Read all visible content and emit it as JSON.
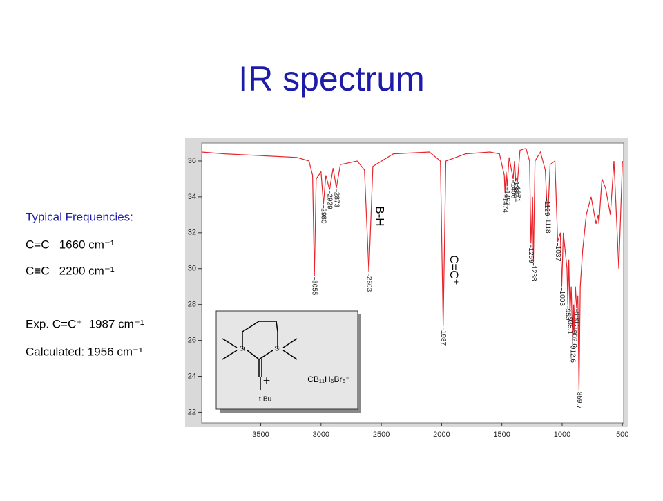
{
  "title": "IR spectrum",
  "notes": {
    "heading": "Typical Frequencies:",
    "lines": [
      "C=C   1660 cm⁻¹",
      "C≡C   2200 cm⁻¹",
      "Exp. C=C⁺  1987 cm⁻¹",
      "Calculated: 1956 cm⁻¹"
    ]
  },
  "inset": {
    "atoms": [
      "Si",
      "Si"
    ],
    "charge": "+",
    "substituent": "t-Bu",
    "anion": "CB₁₁H₆Br₆⁻"
  },
  "chart_data": {
    "type": "line",
    "x": [
      3990,
      3800,
      3500,
      3200,
      3100,
      3070,
      3055,
      3040,
      3000,
      2980,
      2960,
      2929,
      2900,
      2873,
      2840,
      2700,
      2640,
      2603,
      2570,
      2400,
      2100,
      2010,
      1987,
      1965,
      1800,
      1600,
      1520,
      1480,
      1474,
      1465,
      1457,
      1440,
      1406,
      1395,
      1387,
      1371,
      1350,
      1300,
      1270,
      1259,
      1245,
      1238,
      1225,
      1180,
      1140,
      1129,
      1118,
      1100,
      1060,
      1037,
      1015,
      1003,
      990,
      960,
      953,
      945,
      935,
      925,
      912,
      905,
      902,
      890,
      880,
      870,
      860,
      850,
      830,
      800,
      760,
      719,
      700,
      695,
      670,
      640,
      600,
      570,
      530,
      500
    ],
    "series": [
      {
        "name": "spectrum",
        "color": "#e8232a",
        "values": [
          36.5,
          36.4,
          36.3,
          36.2,
          36.0,
          35.2,
          29.6,
          35.0,
          35.4,
          33.6,
          35.2,
          34.4,
          35.6,
          34.5,
          35.8,
          36.0,
          35.5,
          29.8,
          35.7,
          36.4,
          36.5,
          36.0,
          26.8,
          36.0,
          36.4,
          36.5,
          36.4,
          35.2,
          34.2,
          35.4,
          34.6,
          36.2,
          35.0,
          36.0,
          35.1,
          34.8,
          36.6,
          36.7,
          36.0,
          31.4,
          34.0,
          30.4,
          36.0,
          36.5,
          35.5,
          34.0,
          33.0,
          35.8,
          36.0,
          31.5,
          32.0,
          29.0,
          32.0,
          30.0,
          28.0,
          30.5,
          27.5,
          29.0,
          25.8,
          28.0,
          26.5,
          29.0,
          27.8,
          28.5,
          23.2,
          29.0,
          31.0,
          33.0,
          34.0,
          32.5,
          33.0,
          32.5,
          35.0,
          34.5,
          33.0,
          36.0,
          30.0,
          36.0
        ]
      }
    ],
    "xlim": [
      3990,
      490
    ],
    "ylim": [
      21.4,
      37
    ],
    "xticks": [
      3500,
      3000,
      2500,
      2000,
      1500,
      1000,
      500
    ],
    "yticks": [
      22,
      24,
      26,
      28,
      30,
      32,
      34,
      36
    ],
    "peak_labels": [
      3055,
      2980,
      2929,
      2873,
      2603,
      1987,
      1474,
      1457,
      1406,
      1387,
      1371,
      1259,
      1238,
      1129,
      1118,
      1037,
      1003,
      953,
      935.1,
      912.6,
      902.6,
      880.3,
      859.7
    ],
    "annotations": [
      {
        "text": "B-H",
        "x": 2603
      },
      {
        "text": "C=C⁺",
        "x": 1987
      }
    ]
  }
}
